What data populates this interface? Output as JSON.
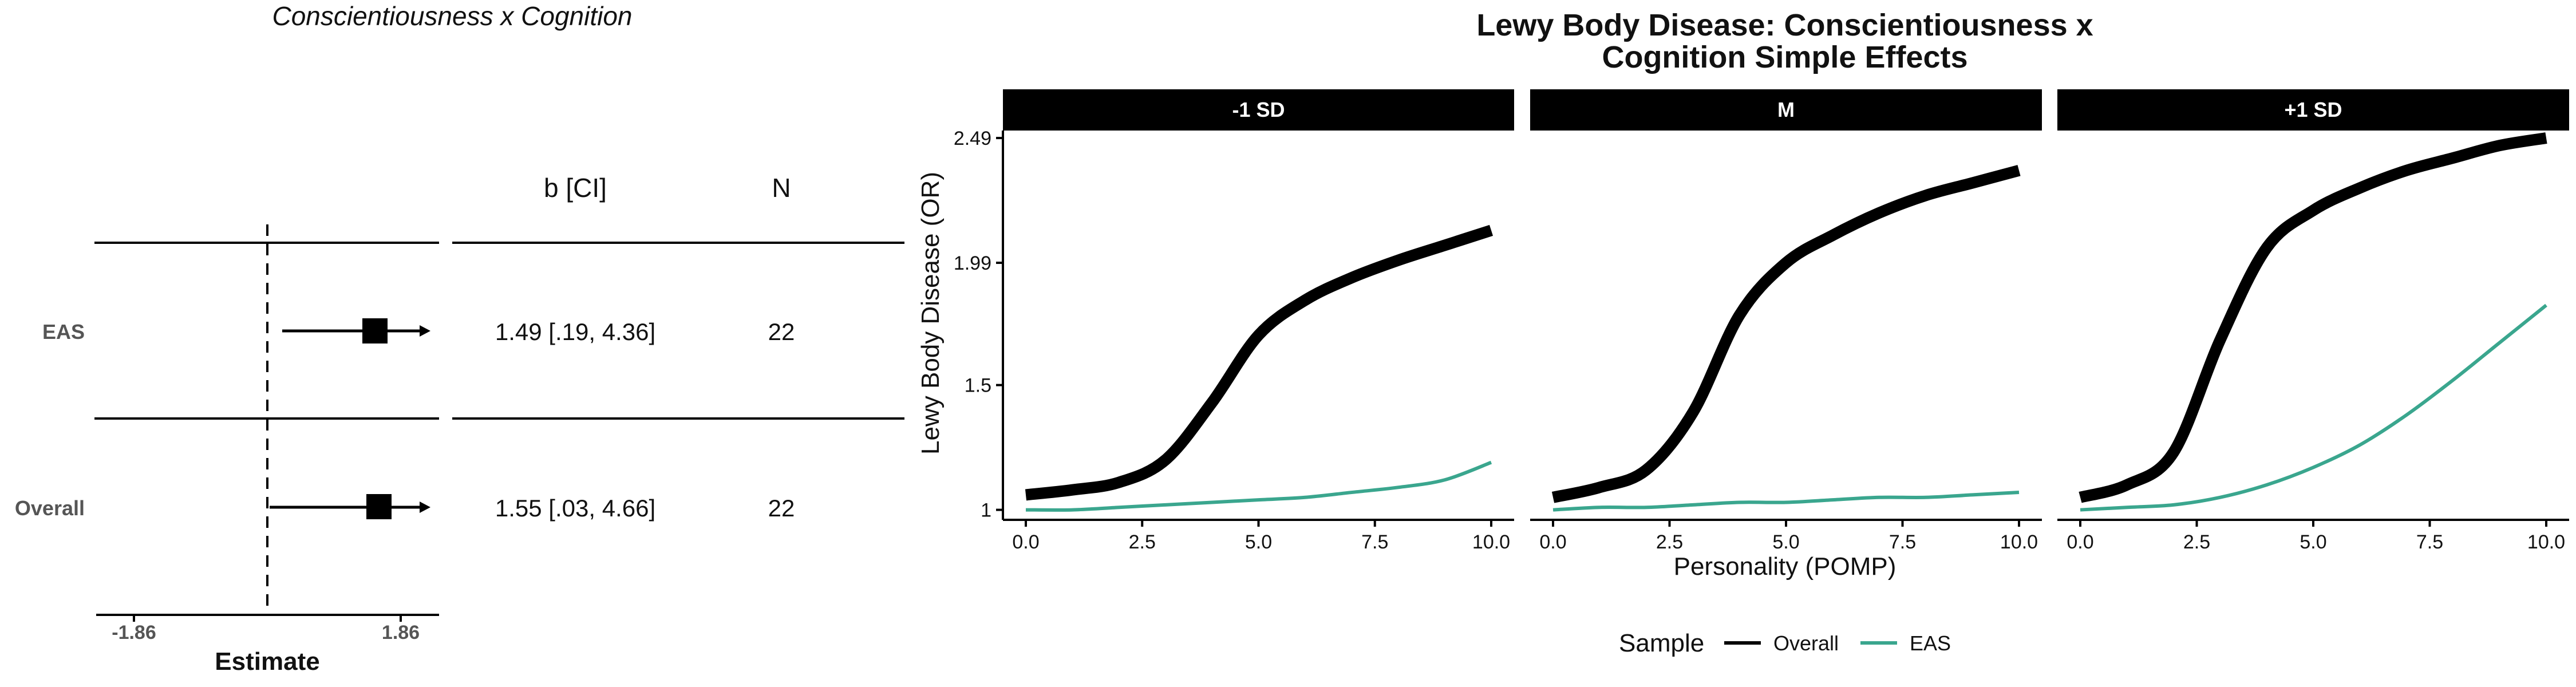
{
  "forest": {
    "title": "Conscientiousness x Cognition",
    "col_b": "b [CI]",
    "col_n": "N",
    "xlabel": "Estimate",
    "xticks": [
      "-1.86",
      "1.86"
    ],
    "rows": [
      {
        "label": "EAS",
        "ci_text": "1.49 [.19, 4.36]",
        "n": "22"
      },
      {
        "label": "Overall",
        "ci_text": "1.55 [.03, 4.66]",
        "n": "22"
      }
    ]
  },
  "effects": {
    "title_line1": "Lewy Body Disease: Conscientiousness x",
    "title_line2": "Cognition Simple Effects",
    "ylabel": "Lewy Body Disease (OR)",
    "xlabel": "Personality (POMP)",
    "yticks": [
      "1",
      "1.5",
      "1.99",
      "2.49"
    ],
    "xticks": [
      "0.0",
      "2.5",
      "5.0",
      "7.5",
      "10.0"
    ],
    "legend_title": "Sample",
    "colors": {
      "Overall": "#000000",
      "EAS": "#3aa68e"
    }
  },
  "chart_data": [
    {
      "type": "forest",
      "title": "Conscientiousness x Cognition",
      "xlabel": "Estimate",
      "xlim": [
        -1.86,
        1.86
      ],
      "rows": [
        {
          "label": "EAS",
          "estimate": 1.49,
          "ci": [
            0.19,
            4.36
          ],
          "n": 22
        },
        {
          "label": "Overall",
          "estimate": 1.55,
          "ci": [
            0.03,
            4.66
          ],
          "n": 22
        }
      ]
    },
    {
      "type": "line",
      "title": "Lewy Body Disease: Conscientiousness x Cognition Simple Effects",
      "xlabel": "Personality (POMP)",
      "ylabel": "Lewy Body Disease (OR)",
      "xlim": [
        0,
        10
      ],
      "ylim": [
        0.96,
        2.52
      ],
      "x": [
        0,
        1,
        2,
        3,
        4,
        5,
        6,
        7,
        8,
        9,
        10
      ],
      "legend_position": "bottom",
      "panels": [
        {
          "name": "-1 SD",
          "series": [
            {
              "name": "Overall",
              "values": [
                1.06,
                1.08,
                1.11,
                1.2,
                1.43,
                1.7,
                1.84,
                1.93,
                2.0,
                2.06,
                2.12
              ]
            },
            {
              "name": "EAS",
              "values": [
                1.0,
                1.0,
                1.01,
                1.02,
                1.03,
                1.04,
                1.05,
                1.07,
                1.09,
                1.12,
                1.19
              ]
            }
          ]
        },
        {
          "name": "M",
          "series": [
            {
              "name": "Overall",
              "values": [
                1.05,
                1.09,
                1.16,
                1.39,
                1.78,
                1.99,
                2.1,
                2.19,
                2.26,
                2.31,
                2.36
              ]
            },
            {
              "name": "EAS",
              "values": [
                1.0,
                1.01,
                1.01,
                1.02,
                1.03,
                1.03,
                1.04,
                1.05,
                1.05,
                1.06,
                1.07
              ]
            }
          ]
        },
        {
          "name": "+1 SD",
          "series": [
            {
              "name": "Overall",
              "values": [
                1.05,
                1.1,
                1.23,
                1.68,
                2.05,
                2.2,
                2.29,
                2.36,
                2.41,
                2.46,
                2.49
              ]
            },
            {
              "name": "EAS",
              "values": [
                1.0,
                1.01,
                1.02,
                1.05,
                1.1,
                1.17,
                1.26,
                1.38,
                1.52,
                1.67,
                1.82
              ]
            }
          ]
        }
      ]
    }
  ]
}
